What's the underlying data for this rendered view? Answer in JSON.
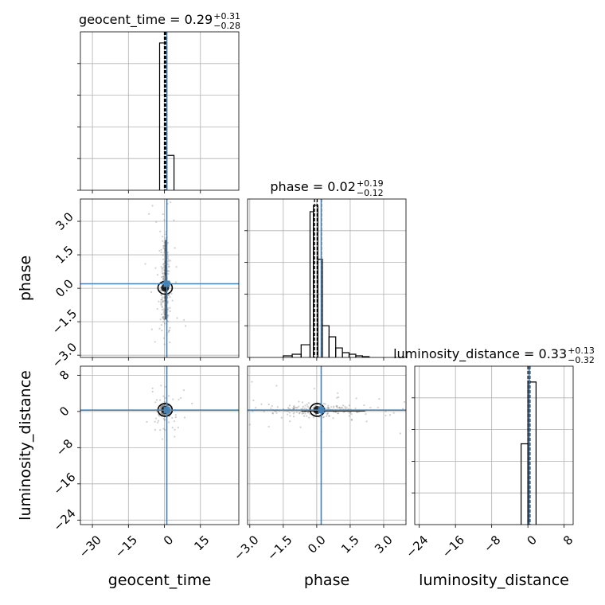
{
  "chart_data": {
    "type": "corner",
    "grid": true,
    "truth_color": "#4682b4",
    "line_color": "#000000",
    "params": [
      {
        "name": "geocent_time",
        "xlabel": "geocent_time",
        "range": [
          -35,
          31
        ],
        "ticks": [
          -30,
          -15,
          0,
          15
        ],
        "tick_labels": [
          "−30",
          "−15",
          "0",
          "15"
        ],
        "truth": 1.0,
        "title": {
          "prefix": "geocent_time = ",
          "value": "0.29",
          "plus": "+0.31",
          "minus": "−0.28"
        },
        "quantiles": [
          0.0,
          0.29,
          0.6
        ],
        "hist": {
          "edges": [
            -2,
            1,
            4
          ],
          "counts": [
            0.93,
            0.22
          ]
        }
      },
      {
        "name": "phase",
        "xlabel": "phase",
        "ylabel": "phase",
        "range": [
          -3.1,
          4.0
        ],
        "ticks": [
          -3.0,
          -1.5,
          0.0,
          1.5,
          3.0
        ],
        "tick_labels": [
          "−3.0",
          "−1.5",
          "0.0",
          "1.5",
          "3.0"
        ],
        "truth": 0.2,
        "title": {
          "prefix": "phase = ",
          "value": "0.02",
          "plus": "+0.19",
          "minus": "−0.12"
        },
        "quantiles": [
          -0.1,
          0.02,
          0.21
        ],
        "hist": {
          "edges": [
            -1.5,
            -1.1,
            -0.7,
            -0.3,
            -0.15,
            0.05,
            0.25,
            0.55,
            0.85,
            1.15,
            1.45,
            1.75,
            2.05,
            2.35
          ],
          "counts": [
            0.01,
            0.02,
            0.08,
            0.92,
            0.96,
            0.62,
            0.2,
            0.13,
            0.06,
            0.03,
            0.02,
            0.01,
            0.005
          ]
        }
      },
      {
        "name": "luminosity_distance",
        "xlabel": "luminosity_distance",
        "ylabel": "luminosity_distance",
        "range": [
          -25,
          10
        ],
        "ticks": [
          -24,
          -16,
          -8,
          0,
          8
        ],
        "tick_labels": [
          "−24",
          "−16",
          "−8",
          "0",
          "8"
        ],
        "truth": 0.3,
        "title": {
          "prefix": "luminosity_distance = ",
          "value": "0.33",
          "plus": "+0.13",
          "minus": "−0.32"
        },
        "quantiles": [
          0.0,
          0.33,
          0.46
        ],
        "hist": {
          "edges": [
            -1.5,
            0,
            1.8
          ],
          "counts": [
            0.51,
            0.9
          ]
        }
      }
    ]
  }
}
